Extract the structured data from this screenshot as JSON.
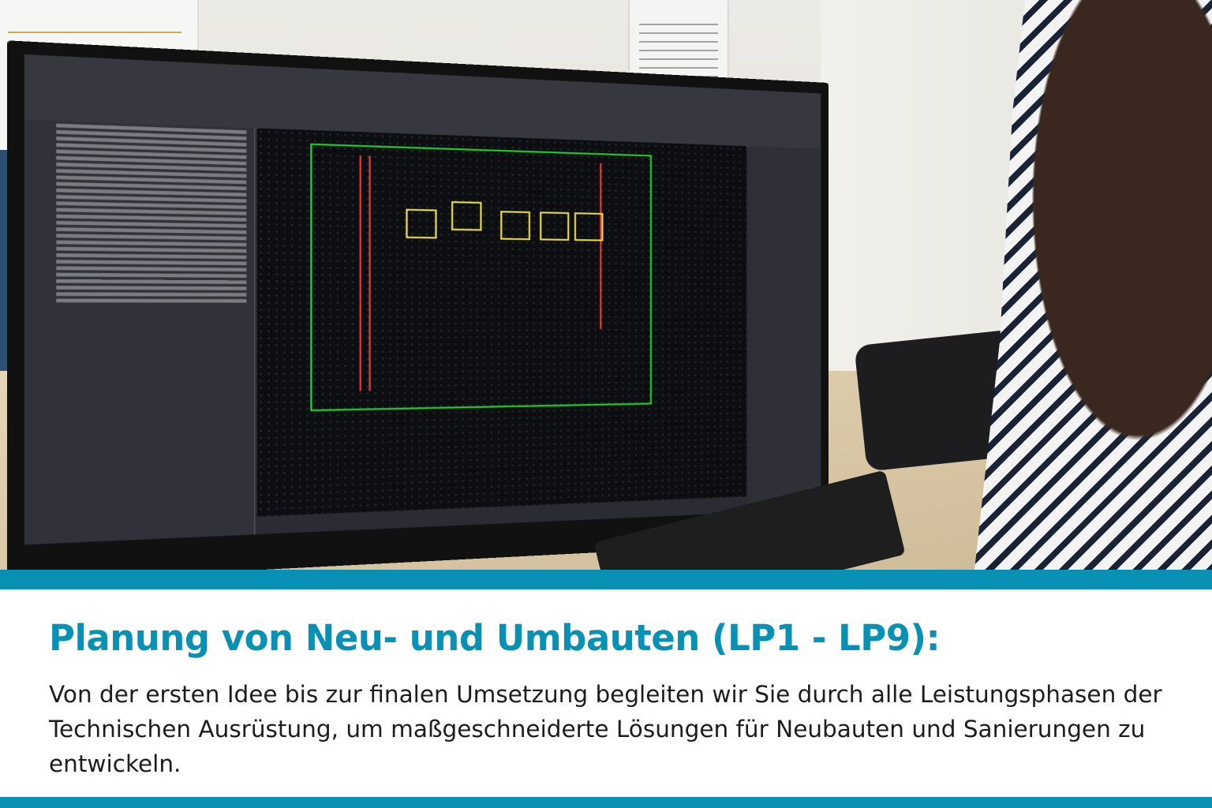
{
  "photo": {
    "description_icon": "office-workstation-photo"
  },
  "caption": {
    "heading": "Planung von Neu- und Umbauten (LP1 - LP9):",
    "body": "Von der ersten Idee bis zur finalen Umsetzung begleiten wir Sie durch alle Leistungsphasen der Technischen Ausrüstung, um maßgeschneiderte Lösungen für Neubauten und Sanierungen zu entwickeln."
  },
  "colors": {
    "accent": "#0891b4",
    "text": "#1c1c1c",
    "background": "#ffffff"
  }
}
